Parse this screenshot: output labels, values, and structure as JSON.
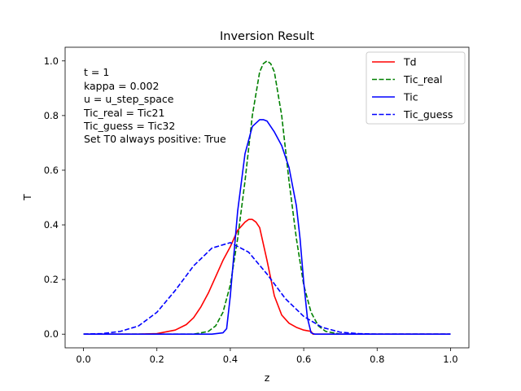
{
  "chart_data": {
    "type": "line",
    "title": "Inversion Result",
    "xlabel": "z",
    "ylabel": "T",
    "xlim": [
      -0.05,
      1.05
    ],
    "ylim": [
      -0.05,
      1.05
    ],
    "grid": false,
    "legend_position": "top-right",
    "x_ticks": [
      0.0,
      0.2,
      0.4,
      0.6,
      0.8,
      1.0
    ],
    "x_tick_labels": [
      "0.0",
      "0.2",
      "0.4",
      "0.6",
      "0.8",
      "1.0"
    ],
    "y_ticks": [
      0.0,
      0.2,
      0.4,
      0.6,
      0.8,
      1.0
    ],
    "y_tick_labels": [
      "0.0",
      "0.2",
      "0.4",
      "0.6",
      "0.8",
      "1.0"
    ],
    "annotation_lines": [
      "t = 1",
      "kappa = 0.002",
      "u = u_step_space",
      "Tic_real = Tic21",
      "Tic_guess = Tic32",
      "Set T0 always positive: True"
    ],
    "series": [
      {
        "name": "Td",
        "color": "#ff0000",
        "dash": "solid",
        "x": [
          0.0,
          0.05,
          0.1,
          0.15,
          0.2,
          0.25,
          0.28,
          0.3,
          0.32,
          0.34,
          0.36,
          0.38,
          0.4,
          0.42,
          0.44,
          0.45,
          0.46,
          0.47,
          0.48,
          0.5,
          0.52,
          0.54,
          0.56,
          0.58,
          0.6,
          0.62,
          0.625,
          0.65,
          0.7,
          0.8,
          0.9,
          1.0
        ],
        "y": [
          0.0,
          0.0,
          0.0,
          0.0,
          0.002,
          0.015,
          0.035,
          0.06,
          0.1,
          0.15,
          0.21,
          0.27,
          0.32,
          0.38,
          0.41,
          0.42,
          0.42,
          0.41,
          0.39,
          0.27,
          0.14,
          0.07,
          0.04,
          0.025,
          0.015,
          0.01,
          0.0,
          0.0,
          0.0,
          0.0,
          0.0,
          0.0
        ]
      },
      {
        "name": "Tic_real",
        "color": "#008000",
        "dash": "dashed",
        "x": [
          0.0,
          0.1,
          0.2,
          0.3,
          0.34,
          0.36,
          0.38,
          0.4,
          0.42,
          0.44,
          0.46,
          0.48,
          0.49,
          0.5,
          0.51,
          0.52,
          0.54,
          0.56,
          0.58,
          0.6,
          0.62,
          0.64,
          0.66,
          0.7,
          0.8,
          0.9,
          1.0
        ],
        "y": [
          0.0,
          0.0,
          0.0,
          0.0,
          0.01,
          0.03,
          0.08,
          0.18,
          0.35,
          0.56,
          0.8,
          0.96,
          0.99,
          1.0,
          0.99,
          0.96,
          0.8,
          0.56,
          0.35,
          0.18,
          0.08,
          0.03,
          0.01,
          0.0,
          0.0,
          0.0,
          0.0
        ]
      },
      {
        "name": "Tic",
        "color": "#0000ff",
        "dash": "solid",
        "x": [
          0.0,
          0.1,
          0.2,
          0.3,
          0.35,
          0.38,
          0.39,
          0.4,
          0.42,
          0.44,
          0.46,
          0.48,
          0.49,
          0.5,
          0.52,
          0.54,
          0.56,
          0.58,
          0.59,
          0.6,
          0.61,
          0.62,
          0.63,
          0.7,
          0.8,
          0.9,
          1.0
        ],
        "y": [
          0.0,
          0.0,
          0.0,
          0.0,
          0.0,
          0.005,
          0.02,
          0.14,
          0.45,
          0.66,
          0.76,
          0.785,
          0.785,
          0.78,
          0.74,
          0.69,
          0.61,
          0.47,
          0.35,
          0.19,
          0.06,
          0.005,
          0.0,
          0.0,
          0.0,
          0.0,
          0.0
        ]
      },
      {
        "name": "Tic_guess",
        "color": "#0000ff",
        "dash": "dashed",
        "x": [
          0.0,
          0.05,
          0.1,
          0.15,
          0.2,
          0.25,
          0.3,
          0.35,
          0.4,
          0.45,
          0.5,
          0.55,
          0.6,
          0.65,
          0.7,
          0.75,
          0.8,
          0.85,
          0.9,
          1.0
        ],
        "y": [
          0.0,
          0.002,
          0.01,
          0.03,
          0.08,
          0.16,
          0.25,
          0.315,
          0.335,
          0.3,
          0.22,
          0.13,
          0.065,
          0.025,
          0.007,
          0.002,
          0.0,
          0.0,
          0.0,
          0.0
        ]
      }
    ]
  }
}
